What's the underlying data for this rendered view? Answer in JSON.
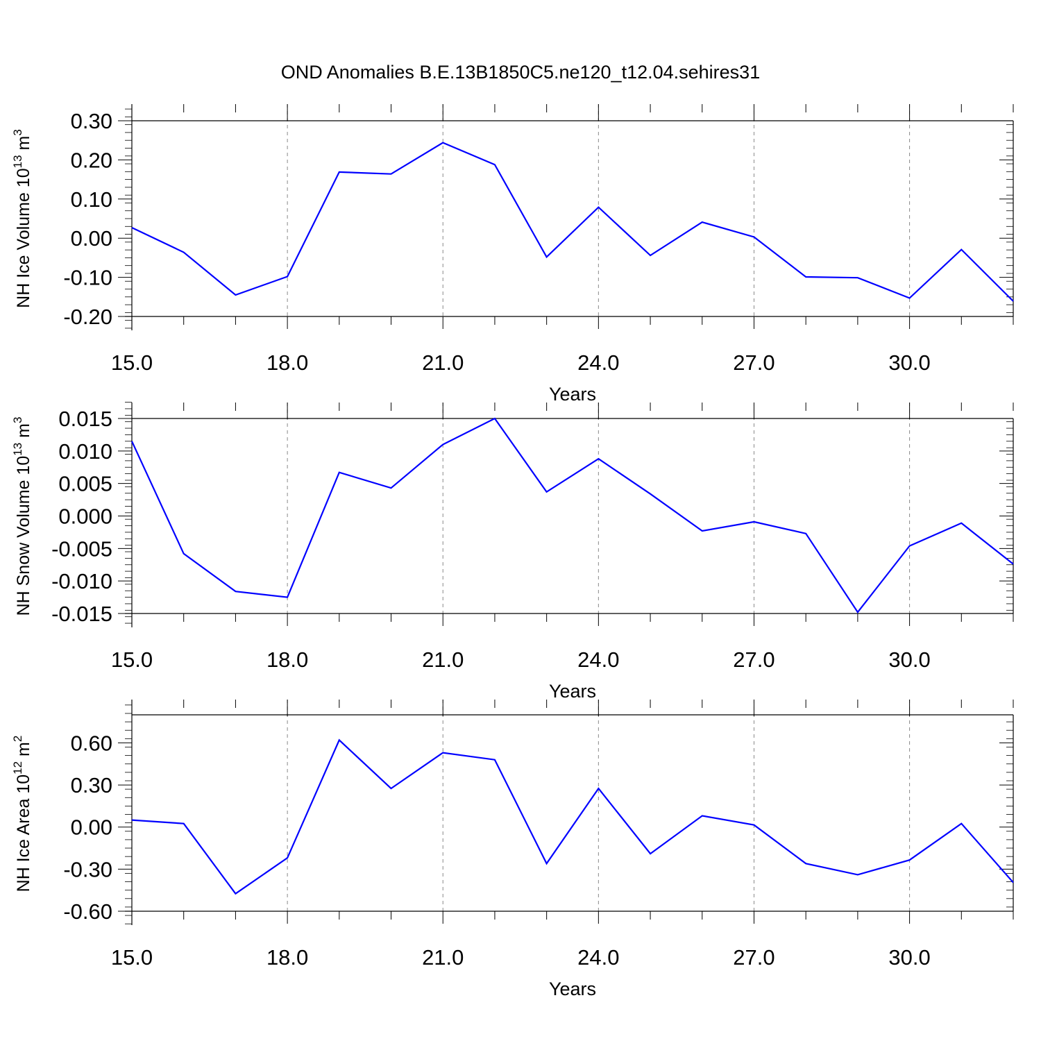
{
  "title": "OND Anomalies B.E.13B1850C5.ne120_t12.04.sehires31",
  "chart_data": [
    {
      "type": "line",
      "xlabel": "Years",
      "ylabel": "NH Ice Volume 10",
      "ylabel_exp": "13",
      "ylabel_unit": "m",
      "ylabel_unit_exp": "3",
      "xlim": [
        15,
        32
      ],
      "ylim": [
        -0.2,
        0.3
      ],
      "x_ticks": [
        15,
        18,
        21,
        24,
        27,
        30
      ],
      "x_tick_labels": [
        "15.0",
        "18.0",
        "21.0",
        "24.0",
        "27.0",
        "30.0"
      ],
      "y_ticks": [
        -0.2,
        -0.1,
        0.0,
        0.1,
        0.2,
        0.3
      ],
      "y_tick_labels": [
        "-0.20",
        "-0.10",
        "0.00",
        "0.10",
        "0.20",
        "0.30"
      ],
      "grid": "vertical dashed at major x ticks",
      "line_color": "#0000ff",
      "x": [
        15,
        16,
        17,
        18,
        19,
        20,
        21,
        22,
        23,
        24,
        25,
        26,
        27,
        28,
        29,
        30,
        31,
        32
      ],
      "values": [
        0.027,
        -0.036,
        -0.145,
        -0.098,
        0.169,
        0.164,
        0.244,
        0.188,
        -0.048,
        0.079,
        -0.044,
        0.041,
        0.003,
        -0.099,
        -0.101,
        -0.153,
        -0.029,
        -0.161
      ]
    },
    {
      "type": "line",
      "xlabel": "Years",
      "ylabel": "NH Snow Volume 10",
      "ylabel_exp": "13",
      "ylabel_unit": "m",
      "ylabel_unit_exp": "3",
      "xlim": [
        15,
        32
      ],
      "ylim": [
        -0.015,
        0.015
      ],
      "x_ticks": [
        15,
        18,
        21,
        24,
        27,
        30
      ],
      "x_tick_labels": [
        "15.0",
        "18.0",
        "21.0",
        "24.0",
        "27.0",
        "30.0"
      ],
      "y_ticks": [
        -0.015,
        -0.01,
        -0.005,
        0.0,
        0.005,
        0.01,
        0.015
      ],
      "y_tick_labels": [
        "-0.015",
        "-0.010",
        "-0.005",
        "0.000",
        "0.005",
        "0.010",
        "0.015"
      ],
      "grid": "vertical dashed at major x ticks",
      "line_color": "#0000ff",
      "x": [
        15,
        16,
        17,
        18,
        19,
        20,
        21,
        22,
        23,
        24,
        25,
        26,
        27,
        28,
        29,
        30,
        31,
        32
      ],
      "values": [
        0.0115,
        -0.0058,
        -0.0116,
        -0.0125,
        0.0067,
        0.0043,
        0.011,
        0.015,
        0.0037,
        0.0088,
        0.0034,
        -0.0023,
        -0.0009,
        -0.0027,
        -0.0148,
        -0.0046,
        -0.0011,
        -0.0074
      ]
    },
    {
      "type": "line",
      "xlabel": "Years",
      "ylabel": "NH Ice Area 10",
      "ylabel_exp": "12",
      "ylabel_unit": "m",
      "ylabel_unit_exp": "2",
      "xlim": [
        15,
        32
      ],
      "ylim": [
        -0.6,
        0.8
      ],
      "x_ticks": [
        15,
        18,
        21,
        24,
        27,
        30
      ],
      "x_tick_labels": [
        "15.0",
        "18.0",
        "21.0",
        "24.0",
        "27.0",
        "30.0"
      ],
      "y_ticks": [
        -0.6,
        -0.3,
        0.0,
        0.3,
        0.6
      ],
      "y_tick_labels": [
        "-0.60",
        "-0.30",
        "0.00",
        "0.30",
        "0.60"
      ],
      "grid": "vertical dashed at major x ticks",
      "line_color": "#0000ff",
      "x": [
        15,
        16,
        17,
        18,
        19,
        20,
        21,
        22,
        23,
        24,
        25,
        26,
        27,
        28,
        29,
        30,
        31,
        32
      ],
      "values": [
        0.05,
        0.025,
        -0.475,
        -0.22,
        0.62,
        0.275,
        0.53,
        0.48,
        -0.26,
        0.275,
        -0.19,
        0.08,
        0.015,
        -0.26,
        -0.34,
        -0.235,
        0.025,
        -0.395
      ]
    }
  ]
}
